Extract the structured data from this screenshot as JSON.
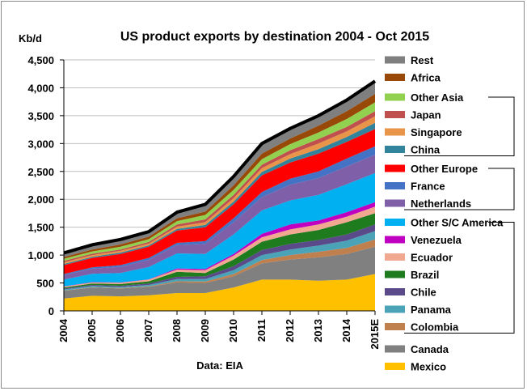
{
  "chart_data": {
    "type": "area",
    "stacked": true,
    "title": "US product exports by destination 2004 - Oct 2015",
    "ylabel": "Kb/d",
    "xlabel": "",
    "source_note": "Data: EIA",
    "ylim": [
      0,
      4500
    ],
    "yticks": [
      "0",
      "500",
      "1,000",
      "1,500",
      "2,000",
      "2,500",
      "3,000",
      "3,500",
      "4,000",
      "4,500"
    ],
    "categories": [
      "2004",
      "2005",
      "2006",
      "2007",
      "2008",
      "2009",
      "2010",
      "2011",
      "2012",
      "2013",
      "2014",
      "2015E"
    ],
    "grid": true,
    "legend_position": "right",
    "series": [
      {
        "name": "Mexico",
        "color": "#FFC000",
        "values": [
          220,
          270,
          260,
          280,
          320,
          320,
          420,
          560,
          560,
          540,
          560,
          660
        ]
      },
      {
        "name": "Canada",
        "color": "#808080",
        "values": [
          140,
          150,
          140,
          150,
          190,
          180,
          200,
          290,
          360,
          420,
          460,
          490
        ]
      },
      {
        "name": "Colombia",
        "color": "#C0804E",
        "values": [
          5,
          5,
          10,
          10,
          20,
          25,
          40,
          60,
          80,
          100,
          110,
          130
        ]
      },
      {
        "name": "Panama",
        "color": "#4BA3B8",
        "values": [
          20,
          20,
          20,
          25,
          40,
          45,
          70,
          90,
          100,
          110,
          130,
          150
        ]
      },
      {
        "name": "Chile",
        "color": "#5A4A8A",
        "values": [
          15,
          20,
          20,
          25,
          40,
          50,
          70,
          90,
          100,
          100,
          110,
          120
        ]
      },
      {
        "name": "Brazil",
        "color": "#1E7B1E",
        "values": [
          20,
          25,
          30,
          40,
          90,
          60,
          120,
          150,
          170,
          180,
          220,
          200
        ]
      },
      {
        "name": "Ecuador",
        "color": "#F0A890",
        "values": [
          15,
          20,
          25,
          30,
          40,
          50,
          70,
          80,
          90,
          100,
          100,
          120
        ]
      },
      {
        "name": "Venezuela",
        "color": "#C000C0",
        "values": [
          5,
          5,
          5,
          5,
          20,
          20,
          30,
          60,
          90,
          70,
          80,
          80
        ]
      },
      {
        "name": "Other S/C America",
        "color": "#00B0F0",
        "values": [
          120,
          150,
          170,
          220,
          270,
          270,
          350,
          420,
          430,
          460,
          500,
          520
        ]
      },
      {
        "name": "Netherlands",
        "color": "#7F5FA8",
        "values": [
          80,
          90,
          110,
          130,
          150,
          180,
          220,
          240,
          280,
          300,
          320,
          330
        ]
      },
      {
        "name": "France",
        "color": "#4472C4",
        "values": [
          20,
          25,
          30,
          35,
          40,
          50,
          70,
          90,
          110,
          120,
          140,
          150
        ]
      },
      {
        "name": "Other Europe",
        "color": "#FF0000",
        "values": [
          160,
          170,
          200,
          200,
          220,
          250,
          250,
          300,
          290,
          320,
          300,
          310
        ]
      },
      {
        "name": "China",
        "color": "#31849B",
        "values": [
          20,
          20,
          25,
          25,
          30,
          40,
          50,
          60,
          70,
          80,
          90,
          110
        ]
      },
      {
        "name": "Singapore",
        "color": "#E8954A",
        "values": [
          30,
          30,
          30,
          30,
          40,
          50,
          60,
          70,
          80,
          100,
          100,
          120
        ]
      },
      {
        "name": "Japan",
        "color": "#C0504D",
        "values": [
          25,
          25,
          25,
          30,
          40,
          50,
          60,
          60,
          70,
          80,
          80,
          90
        ]
      },
      {
        "name": "Other Asia",
        "color": "#92D050",
        "values": [
          40,
          40,
          50,
          50,
          60,
          80,
          90,
          100,
          110,
          120,
          140,
          160
        ]
      },
      {
        "name": "Africa",
        "color": "#984807",
        "values": [
          30,
          35,
          40,
          45,
          50,
          60,
          80,
          100,
          100,
          120,
          140,
          150
        ]
      },
      {
        "name": "Rest",
        "color": "#7F7F7F",
        "values": [
          75,
          85,
          90,
          90,
          110,
          130,
          160,
          180,
          180,
          180,
          200,
          230
        ]
      }
    ],
    "total_line_color": "#000000",
    "legend_groups": [
      {
        "members": [
          "Rest",
          "Africa"
        ],
        "bracket": false
      },
      {
        "members": [
          "Other Asia",
          "Japan",
          "Singapore",
          "China"
        ],
        "bracket": true
      },
      {
        "members": [
          "Other Europe",
          "France",
          "Netherlands"
        ],
        "bracket": true
      },
      {
        "members": [
          "Other S/C America",
          "Venezuela",
          "Ecuador",
          "Brazil",
          "Chile",
          "Panama",
          "Colombia"
        ],
        "bracket": true
      },
      {
        "members": [
          "Canada",
          "Mexico"
        ],
        "bracket": false
      }
    ]
  }
}
